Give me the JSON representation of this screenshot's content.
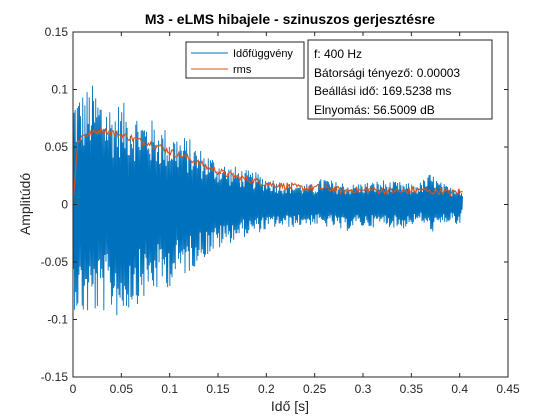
{
  "chart_data": {
    "type": "line",
    "title": "M3 - eLMS hibajele - szinuszos gerjesztésre",
    "xlabel": "Idő [s]",
    "ylabel": "Amplitúdó",
    "xlim": [
      0,
      0.45
    ],
    "ylim": [
      -0.15,
      0.15
    ],
    "xticks": [
      0,
      0.05,
      0.1,
      0.15,
      0.2,
      0.25,
      0.3,
      0.35,
      0.4,
      0.45
    ],
    "xtick_labels": [
      "0",
      "0.05",
      "0.1",
      "0.15",
      "0.2",
      "0.25",
      "0.3",
      "0.35",
      "0.4",
      "0.45"
    ],
    "yticks": [
      -0.15,
      -0.1,
      -0.05,
      0,
      0.05,
      0.1,
      0.15
    ],
    "ytick_labels": [
      "-0.15",
      "-0.1",
      "-0.05",
      "0",
      "0.05",
      "0.1",
      "0.15"
    ],
    "grid": false,
    "legend_position": "top-center",
    "series": [
      {
        "name": "Időfüggvény",
        "color": "#0072BD",
        "x": [
          0,
          0.01,
          0.02,
          0.03,
          0.04,
          0.05,
          0.06,
          0.07,
          0.08,
          0.09,
          0.1,
          0.11,
          0.12,
          0.13,
          0.14,
          0.15,
          0.16,
          0.17,
          0.18,
          0.19,
          0.2,
          0.21,
          0.22,
          0.23,
          0.24,
          0.25,
          0.26,
          0.27,
          0.28,
          0.29,
          0.3,
          0.31,
          0.32,
          0.33,
          0.34,
          0.35,
          0.36,
          0.37,
          0.38,
          0.39,
          0.4,
          0.403
        ],
        "y_max": [
          0.1,
          0.1,
          0.105,
          0.098,
          0.088,
          0.09,
          0.085,
          0.08,
          0.075,
          0.07,
          0.065,
          0.062,
          0.058,
          0.05,
          0.045,
          0.04,
          0.035,
          0.033,
          0.03,
          0.028,
          0.025,
          0.022,
          0.02,
          0.02,
          0.018,
          0.018,
          0.025,
          0.02,
          0.02,
          0.018,
          0.02,
          0.02,
          0.022,
          0.02,
          0.02,
          0.018,
          0.02,
          0.028,
          0.02,
          0.015,
          0.02,
          0.01
        ],
        "y_min": [
          -0.09,
          -0.1,
          -0.098,
          -0.095,
          -0.095,
          -0.102,
          -0.09,
          -0.085,
          -0.08,
          -0.075,
          -0.072,
          -0.065,
          -0.06,
          -0.05,
          -0.045,
          -0.04,
          -0.035,
          -0.03,
          -0.028,
          -0.025,
          -0.023,
          -0.02,
          -0.02,
          -0.02,
          -0.018,
          -0.018,
          -0.02,
          -0.02,
          -0.025,
          -0.02,
          -0.02,
          -0.02,
          -0.018,
          -0.02,
          -0.022,
          -0.018,
          -0.015,
          -0.025,
          -0.02,
          -0.015,
          -0.02,
          -0.005
        ]
      },
      {
        "name": "rms",
        "color": "#D95319",
        "x": [
          0,
          0.005,
          0.01,
          0.02,
          0.03,
          0.04,
          0.05,
          0.06,
          0.07,
          0.08,
          0.09,
          0.1,
          0.11,
          0.12,
          0.13,
          0.14,
          0.15,
          0.16,
          0.17,
          0.18,
          0.19,
          0.2,
          0.21,
          0.22,
          0.23,
          0.24,
          0.25,
          0.26,
          0.27,
          0.28,
          0.29,
          0.3,
          0.31,
          0.32,
          0.33,
          0.34,
          0.35,
          0.36,
          0.37,
          0.38,
          0.39,
          0.4,
          0.403
        ],
        "y": [
          0.0,
          0.055,
          0.06,
          0.062,
          0.065,
          0.063,
          0.06,
          0.058,
          0.055,
          0.053,
          0.05,
          0.046,
          0.043,
          0.04,
          0.036,
          0.032,
          0.029,
          0.026,
          0.024,
          0.022,
          0.02,
          0.018,
          0.017,
          0.016,
          0.015,
          0.014,
          0.015,
          0.014,
          0.013,
          0.012,
          0.013,
          0.012,
          0.013,
          0.012,
          0.012,
          0.011,
          0.012,
          0.013,
          0.011,
          0.012,
          0.01,
          0.011,
          0.01
        ]
      }
    ],
    "annotation": [
      "f: 400 Hz",
      "Bátorsági tényező: 0.00003",
      "Beállási idő: 169.5238 ms",
      "Elnyomás: 56.5009 dB"
    ]
  }
}
